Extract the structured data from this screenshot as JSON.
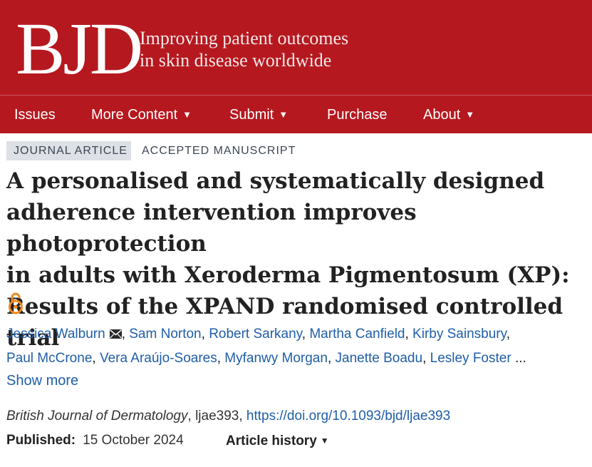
{
  "header": {
    "logo_text": "BJD",
    "tagline_line1": "Improving patient outcomes",
    "tagline_line2": "in skin disease worldwide",
    "brand_color": "#b6181f"
  },
  "nav": {
    "items": [
      {
        "label": "Issues",
        "has_dropdown": false
      },
      {
        "label": "More Content",
        "has_dropdown": true
      },
      {
        "label": "Submit",
        "has_dropdown": true
      },
      {
        "label": "Purchase",
        "has_dropdown": false
      },
      {
        "label": "About",
        "has_dropdown": true
      }
    ],
    "caret": "▼"
  },
  "article": {
    "type_badge": "JOURNAL ARTICLE",
    "status_badge": "ACCEPTED MANUSCRIPT",
    "title_lines": [
      "A personalised and systematically designed",
      "adherence intervention improves photoprotection",
      "in adults with Xeroderma Pigmentosum (XP):",
      "Results of the XPAND randomised controlled trial"
    ],
    "open_access_icon": "open-access-lock-icon",
    "authors": [
      "Jessica Walburn",
      "Sam Norton",
      "Robert Sarkany",
      "Martha Canfield",
      "Kirby Sainsbury",
      "Paul McCrone",
      "Vera Araújo-Soares",
      "Myfanwy Morgan",
      "Janette Boadu",
      "Lesley Foster"
    ],
    "authors_ellisis": "...",
    "show_more_label": "Show more",
    "journal_name": "British Journal of Dermatology",
    "article_id": "ljae393",
    "doi_url": "https://doi.org/10.1093/bjd/ljae393",
    "published_label": "Published:",
    "published_date": "15 October 2024",
    "history_label": "Article history",
    "link_color": "#1f5ea8"
  }
}
